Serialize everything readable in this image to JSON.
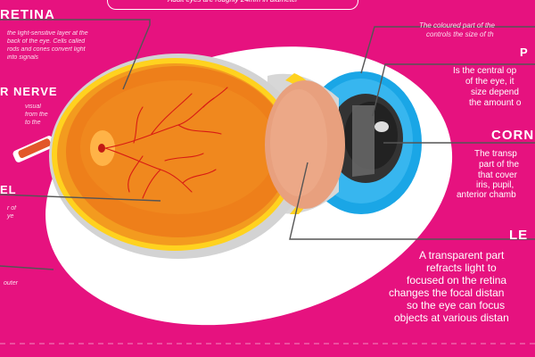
{
  "top_note": "Adult eyes are roughly 24mm in diameter",
  "labels": {
    "retina": {
      "title": "RETINA",
      "desc": [
        "the light-sensitive layer at the",
        "back of the eye. Cells called",
        "rods and cones convert light",
        "into signals"
      ]
    },
    "optic_nerve": {
      "title": "R NERVE",
      "desc": [
        "visual",
        "from the",
        "to the"
      ]
    },
    "vitreous": {
      "title": "EL",
      "desc": [
        "r of",
        "ye"
      ]
    },
    "sclera": {
      "desc": "outer"
    },
    "iris": {
      "desc": [
        "The coloured part of the",
        "controls the size of th"
      ]
    },
    "pupil": {
      "title": "P",
      "desc": [
        "Is the central op",
        "of the eye, it",
        "size depend",
        "the amount o"
      ]
    },
    "cornea": {
      "title": "CORN",
      "desc": [
        "The transp",
        "part of the",
        "that cover",
        "iris, pupil,",
        "anterior chamb"
      ]
    },
    "lens": {
      "title": "LE",
      "desc": [
        "A transparent part",
        "refracts light to",
        "focused on the retina",
        "changes the focal distan",
        "so the eye can focus",
        "objects at various distan"
      ]
    }
  },
  "colors": {
    "background": "#e6127f",
    "globe": "#ef8a1a",
    "retina_ring": "#ffd21f",
    "iris": "#1aa6e6",
    "pupil": "#3a3a3a",
    "lens": "#e8a07e",
    "vessels": "#d81a14"
  }
}
